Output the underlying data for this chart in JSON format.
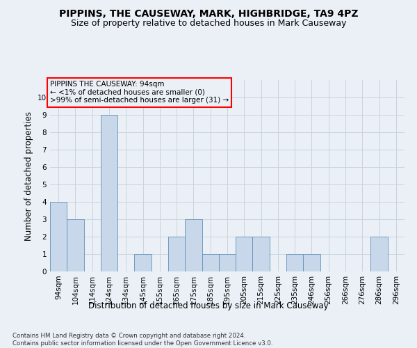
{
  "title1": "PIPPINS, THE CAUSEWAY, MARK, HIGHBRIDGE, TA9 4PZ",
  "title2": "Size of property relative to detached houses in Mark Causeway",
  "xlabel": "Distribution of detached houses by size in Mark Causeway",
  "ylabel": "Number of detached properties",
  "footnote": "Contains HM Land Registry data © Crown copyright and database right 2024.\nContains public sector information licensed under the Open Government Licence v3.0.",
  "categories": [
    "94sqm",
    "104sqm",
    "114sqm",
    "124sqm",
    "134sqm",
    "145sqm",
    "155sqm",
    "165sqm",
    "175sqm",
    "185sqm",
    "195sqm",
    "205sqm",
    "215sqm",
    "225sqm",
    "235sqm",
    "246sqm",
    "256sqm",
    "266sqm",
    "276sqm",
    "286sqm",
    "296sqm"
  ],
  "values": [
    4,
    3,
    0,
    9,
    0,
    1,
    0,
    2,
    3,
    1,
    1,
    2,
    2,
    0,
    1,
    1,
    0,
    0,
    0,
    2,
    0
  ],
  "bar_color": "#c8d8ea",
  "bar_edge_color": "#6090b8",
  "ylim": [
    0,
    11
  ],
  "yticks": [
    0,
    1,
    2,
    3,
    4,
    5,
    6,
    7,
    8,
    9,
    10,
    11
  ],
  "annotation_box_text": "PIPPINS THE CAUSEWAY: 94sqm\n← <1% of detached houses are smaller (0)\n>99% of semi-detached houses are larger (31) →",
  "grid_color": "#c8d4de",
  "background_color": "#eaf0f6",
  "title_fontsize": 10,
  "subtitle_fontsize": 9,
  "annotation_fontsize": 7.5,
  "tick_fontsize": 7.5,
  "ylabel_fontsize": 8.5,
  "xlabel_fontsize": 8.5,
  "footnote_fontsize": 6.2
}
